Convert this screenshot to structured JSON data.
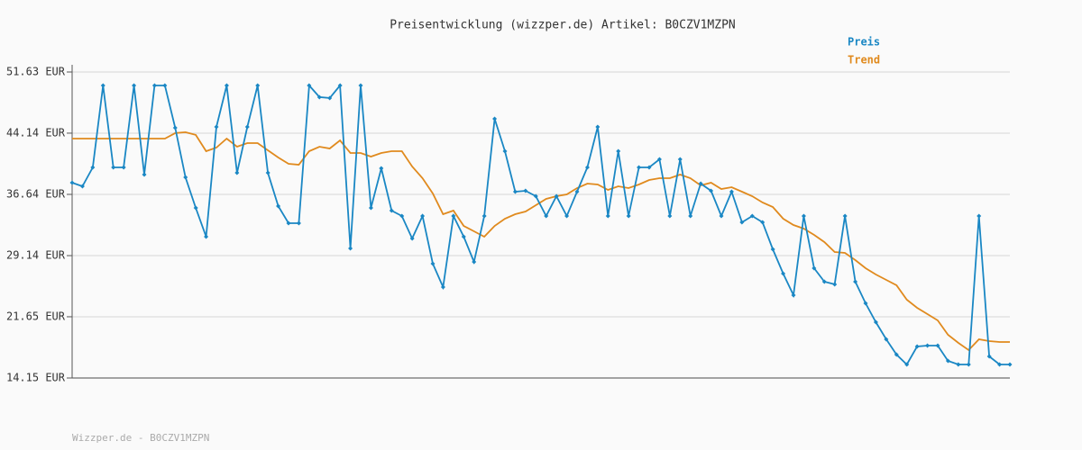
{
  "chart_data": {
    "type": "line",
    "title": "Preisentwicklung (wizzper.de) Artikel: B0CZV1MZPN",
    "footer": "Wizzper.de - B0CZV1MZPN",
    "ylim": [
      14.15,
      51.63
    ],
    "yticks": [
      {
        "value": 14.15,
        "label": "14.15 EUR"
      },
      {
        "value": 21.65,
        "label": "21.65 EUR"
      },
      {
        "value": 29.14,
        "label": "29.14 EUR"
      },
      {
        "value": 36.64,
        "label": "36.64 EUR"
      },
      {
        "value": 44.14,
        "label": "44.14 EUR"
      },
      {
        "value": 51.63,
        "label": "51.63 EUR"
      }
    ],
    "grid": true,
    "legend": "top-right",
    "series": [
      {
        "name": "Preis",
        "color": "#1a87c4",
        "markers": true,
        "values": [
          38.07,
          37.63,
          39.95,
          49.98,
          39.95,
          39.95,
          49.98,
          39.06,
          49.98,
          49.98,
          44.8,
          38.73,
          34.98,
          31.46,
          44.91,
          49.98,
          39.28,
          44.91,
          49.98,
          39.28,
          35.21,
          33.11,
          33.11,
          49.98,
          48.55,
          48.44,
          49.98,
          30.02,
          49.98,
          34.98,
          39.84,
          34.65,
          33.99,
          31.24,
          33.99,
          28.15,
          25.28,
          33.99,
          31.46,
          28.37,
          33.99,
          45.9,
          41.93,
          36.97,
          37.08,
          36.42,
          33.99,
          36.42,
          33.99,
          36.97,
          39.95,
          44.91,
          33.99,
          41.93,
          33.99,
          39.95,
          39.95,
          40.94,
          33.99,
          40.94,
          33.99,
          37.96,
          37.08,
          33.99,
          36.97,
          33.22,
          33.99,
          33.22,
          29.91,
          26.94,
          24.29,
          33.99,
          27.6,
          25.95,
          25.62,
          33.99,
          25.95,
          23.3,
          20.99,
          18.89,
          17.02,
          15.8,
          18.01,
          18.12,
          18.12,
          16.24,
          15.8,
          15.8,
          33.99,
          16.8,
          15.8,
          15.8
        ]
      },
      {
        "name": "Trend",
        "color": "#e08a1e",
        "markers": false,
        "values": [
          43.47,
          43.47,
          43.47,
          43.47,
          43.47,
          43.47,
          43.47,
          43.47,
          43.47,
          43.47,
          44.14,
          44.25,
          43.92,
          41.93,
          42.37,
          43.47,
          42.48,
          42.92,
          42.92,
          42.04,
          41.16,
          40.39,
          40.28,
          41.93,
          42.48,
          42.26,
          43.25,
          41.71,
          41.71,
          41.27,
          41.71,
          41.93,
          41.93,
          40.06,
          38.62,
          36.75,
          34.21,
          34.65,
          32.78,
          32.12,
          31.46,
          32.78,
          33.66,
          34.21,
          34.54,
          35.32,
          36.09,
          36.42,
          36.64,
          37.41,
          37.96,
          37.85,
          37.19,
          37.63,
          37.41,
          37.85,
          38.4,
          38.62,
          38.62,
          39.06,
          38.62,
          37.74,
          38.07,
          37.3,
          37.52,
          36.97,
          36.42,
          35.65,
          35.1,
          33.66,
          32.89,
          32.45,
          31.68,
          30.8,
          29.58,
          29.47,
          28.59,
          27.6,
          26.83,
          26.17,
          25.5,
          23.74,
          22.75,
          21.98,
          21.21,
          19.44,
          18.45,
          17.57,
          18.89,
          18.67,
          18.56,
          18.56
        ]
      }
    ]
  }
}
